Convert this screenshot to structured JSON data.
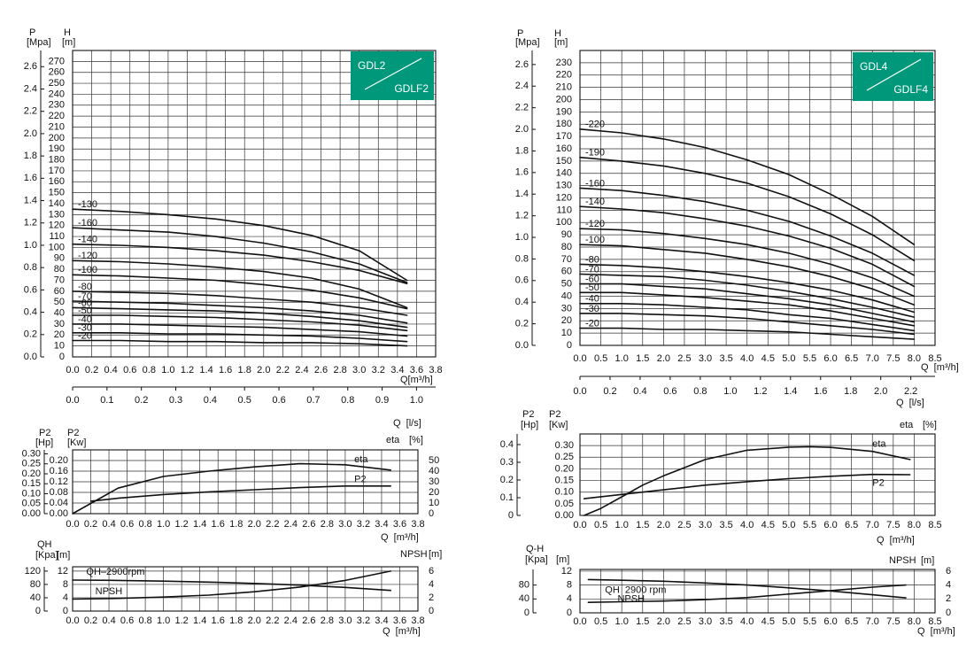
{
  "chart_data": [
    {
      "type": "line",
      "ylabel": "H",
      "yunit": "[m]",
      "y2label": "P",
      "y2unit": "[Mpa]",
      "xlabel": "Q[m³/h]",
      "x2label": "Q  [l/s]",
      "badge": [
        "GDL2",
        "GDLF2"
      ],
      "badge_color": "#00987a",
      "color": "#111111",
      "grid": true,
      "xlim": [
        0,
        3.8
      ],
      "xticks": [
        {
          "value": 0,
          "label": "0.0"
        },
        0.2,
        0.4,
        0.6,
        0.8,
        {
          "value": 1,
          "label": "1.0"
        },
        1.2,
        1.4,
        1.6,
        1.8,
        {
          "value": 2,
          "label": "2.0"
        },
        2.2,
        2.4,
        2.6,
        2.8,
        {
          "value": 3,
          "label": "3.0"
        },
        3.2,
        3.4,
        3.6,
        3.8
      ],
      "ylim": [
        0,
        280
      ],
      "yticks": [
        0,
        10,
        20,
        30,
        40,
        50,
        60,
        70,
        80,
        90,
        100,
        110,
        120,
        130,
        140,
        150,
        160,
        170,
        180,
        190,
        200,
        210,
        220,
        230,
        240,
        250,
        260,
        270
      ],
      "y2lim": [
        0,
        2.745
      ],
      "y2ticks": [
        {
          "value": 0,
          "label": "0.0"
        },
        0.2,
        0.4,
        0.6,
        0.8,
        {
          "value": 1,
          "label": "1.0"
        },
        1.2,
        1.4,
        1.6,
        1.8,
        {
          "value": 2,
          "label": "2.0"
        },
        2.2,
        2.4,
        2.6
      ],
      "x2lim": [
        0,
        1.0556
      ],
      "x2ticks": [
        {
          "value": 0,
          "label": "0.0"
        },
        0.1,
        0.2,
        0.3,
        0.4,
        0.5,
        0.6,
        0.7,
        0.8,
        0.9,
        {
          "value": 1,
          "label": "1.0"
        }
      ],
      "x": [
        0,
        0.5,
        1,
        1.5,
        2,
        2.5,
        3,
        3.5
      ],
      "series": [
        {
          "name": "-130",
          "values": [
            135,
            133,
            130,
            126,
            120,
            111,
            97,
            70
          ]
        },
        {
          "name": "-160",
          "values": [
            118,
            116,
            114,
            110,
            104,
            96,
            85,
            68
          ]
        },
        {
          "name": "-140",
          "values": [
            103,
            102,
            100,
            97,
            93,
            87,
            79,
            67
          ]
        },
        {
          "name": "-120",
          "values": [
            88,
            87,
            85,
            82,
            78,
            72,
            62,
            45
          ]
        },
        {
          "name": "-100",
          "values": [
            75,
            74,
            72,
            70,
            66,
            61,
            54,
            44
          ]
        },
        {
          "name": "-80",
          "values": [
            60,
            59,
            58,
            56,
            53,
            50,
            45,
            38
          ]
        },
        {
          "name": "-70",
          "values": [
            51,
            50,
            49,
            47,
            45,
            42,
            38,
            31
          ]
        },
        {
          "name": "-60",
          "values": [
            45,
            44,
            43,
            42,
            40,
            37,
            33,
            27
          ]
        },
        {
          "name": "-50",
          "values": [
            38,
            38,
            37,
            36,
            34,
            32,
            29,
            24
          ]
        },
        {
          "name": "-40",
          "values": [
            30,
            30,
            29,
            28,
            27,
            25,
            23,
            19
          ]
        },
        {
          "name": "-30",
          "values": [
            22,
            22,
            21,
            21,
            20,
            19,
            17,
            14
          ]
        },
        {
          "name": "-20",
          "values": [
            15,
            15,
            14,
            14,
            13,
            13,
            12,
            10
          ]
        }
      ]
    },
    {
      "type": "line",
      "ylabel": "P2",
      "yunit": "[Kw]",
      "y2label": "eta",
      "y2unit": "[%]",
      "y3label": "P2",
      "y3unit": "[Hp]",
      "xlabel": "Q  [m³/h]",
      "color": "#111111",
      "grid": true,
      "xlim": [
        0,
        3.8
      ],
      "xticks": [
        {
          "value": 0,
          "label": "0.0"
        },
        0.2,
        0.4,
        0.6,
        0.8,
        {
          "value": 1,
          "label": "1.0"
        },
        1.2,
        1.4,
        1.6,
        1.8,
        {
          "value": 2,
          "label": "2.0"
        },
        2.2,
        2.4,
        2.6,
        2.8,
        {
          "value": 3,
          "label": "3.0"
        },
        3.2,
        3.4,
        3.6,
        3.8
      ],
      "ylim": [
        0,
        0.24
      ],
      "yticks": [
        {
          "value": 0,
          "label": "0.00"
        },
        0.04,
        0.08,
        0.12,
        0.16,
        {
          "value": 0.2,
          "label": "0.20"
        }
      ],
      "y2lim": [
        0,
        60
      ],
      "y2ticks": [
        0,
        10,
        20,
        30,
        40,
        50
      ],
      "y3lim": [
        0,
        0.32
      ],
      "y3ticks": [
        {
          "value": 0,
          "label": "0.00"
        },
        0.05,
        {
          "value": 0.1,
          "label": "0.10"
        },
        0.15,
        {
          "value": 0.2,
          "label": "0.20"
        },
        0.25,
        {
          "value": 0.3,
          "label": "0.30"
        }
      ],
      "series": [
        {
          "name": "eta",
          "axis": "y2",
          "x": [
            0,
            0.5,
            1,
            1.5,
            2,
            2.5,
            3,
            3.5
          ],
          "values": [
            0,
            24,
            35,
            40,
            44,
            47,
            46,
            41
          ]
        },
        {
          "name": "P2",
          "x": [
            0.2,
            0.5,
            1,
            1.5,
            2,
            2.5,
            3,
            3.5
          ],
          "values": [
            0.047,
            0.058,
            0.072,
            0.082,
            0.09,
            0.098,
            0.104,
            0.104
          ]
        }
      ]
    },
    {
      "type": "line",
      "yunit": "[m]",
      "y2label": "NPSH",
      "y2unit": "[m]",
      "y3label": "QH",
      "y3unit": "[Kpa]",
      "xlabel": "Q  [m³/h]",
      "color": "#111111",
      "grid": true,
      "xlim": [
        0,
        3.8
      ],
      "xticks": [
        {
          "value": 0,
          "label": "0.0"
        },
        0.2,
        0.4,
        0.6,
        0.8,
        {
          "value": 1,
          "label": "1.0"
        },
        1.2,
        1.4,
        1.6,
        1.8,
        {
          "value": 2,
          "label": "2.0"
        },
        2.2,
        2.4,
        2.6,
        2.8,
        {
          "value": 3,
          "label": "3.0"
        },
        3.2,
        3.4,
        3.6,
        3.8
      ],
      "ylim": [
        0,
        13.3
      ],
      "yticks": [
        0,
        4,
        8,
        12
      ],
      "y2lim": [
        0,
        6.65
      ],
      "y2ticks": [
        0,
        2,
        4,
        6
      ],
      "y3lim": [
        0,
        133
      ],
      "y3ticks": [
        0,
        40,
        80,
        120
      ],
      "series": [
        {
          "name": "QH–2900rpm",
          "x": [
            0,
            0.5,
            1,
            1.5,
            2,
            2.5,
            3,
            3.5
          ],
          "values": [
            9.3,
            9.2,
            9.0,
            8.7,
            8.3,
            7.8,
            7.1,
            6.2
          ]
        },
        {
          "name": "NPSH",
          "axis": "y2",
          "x": [
            0,
            0.5,
            1,
            1.5,
            2,
            2.5,
            3,
            3.5
          ],
          "values": [
            1.8,
            1.9,
            2.1,
            2.4,
            2.9,
            3.6,
            4.6,
            6.0
          ]
        }
      ]
    },
    {
      "type": "line",
      "ylabel": "H",
      "yunit": "[m]",
      "y2label": "P",
      "y2unit": "[Mpa]",
      "xlabel": "Q  [m³/h]",
      "x2label": "Q  [l/s]",
      "badge": [
        "GDL4",
        "GDLF4"
      ],
      "badge_color": "#00987a",
      "color": "#111111",
      "grid": true,
      "xlim": [
        0,
        8.5
      ],
      "xticks": [
        {
          "value": 0,
          "label": "0.0"
        },
        0.5,
        {
          "value": 1,
          "label": "1.0"
        },
        1.5,
        {
          "value": 2,
          "label": "2.0"
        },
        2.5,
        {
          "value": 3,
          "label": "3.0"
        },
        3.5,
        {
          "value": 4,
          "label": "4.0"
        },
        4.5,
        {
          "value": 5,
          "label": "5.0"
        },
        5.5,
        {
          "value": 6,
          "label": "6.0"
        },
        6.5,
        {
          "value": 7,
          "label": "7.0"
        },
        7.5,
        {
          "value": 8,
          "label": "8.0"
        },
        8.5
      ],
      "ylim": [
        0,
        240
      ],
      "yticks": [
        0,
        10,
        20,
        30,
        40,
        50,
        60,
        70,
        80,
        90,
        100,
        110,
        120,
        130,
        140,
        150,
        160,
        170,
        180,
        190,
        200,
        210,
        220,
        230
      ],
      "y2lim": [
        0,
        2.73
      ],
      "y2ticks": [
        {
          "value": 0,
          "label": "0.0"
        },
        0.2,
        0.4,
        0.6,
        0.8,
        {
          "value": 1,
          "label": "1.0"
        },
        1.2,
        1.4,
        1.6,
        1.8,
        {
          "value": 2,
          "label": "2.0"
        },
        2.2,
        2.4,
        2.6
      ],
      "x2lim": [
        0,
        2.361
      ],
      "x2ticks": [
        {
          "value": 0,
          "label": "0.0"
        },
        0.2,
        0.4,
        0.6,
        0.8,
        {
          "value": 1,
          "label": "1.0"
        },
        1.2,
        1.4,
        1.6,
        1.8,
        {
          "value": 2,
          "label": "2.0"
        },
        2.2
      ],
      "x": [
        0,
        1,
        2,
        3,
        4,
        5,
        6,
        7,
        8
      ],
      "series": [
        {
          "name": "-220",
          "values": [
            176,
            173,
            168,
            161,
            151,
            139,
            123,
            105,
            82
          ]
        },
        {
          "name": "-190",
          "values": [
            153,
            150,
            146,
            140,
            132,
            121,
            107,
            90,
            69
          ]
        },
        {
          "name": "-160",
          "values": [
            128,
            126,
            122,
            117,
            110,
            101,
            89,
            75,
            57
          ]
        },
        {
          "name": "-140",
          "values": [
            113,
            111,
            108,
            103,
            97,
            89,
            79,
            66,
            48
          ]
        },
        {
          "name": "-120",
          "values": [
            95,
            94,
            91,
            87,
            82,
            75,
            66,
            55,
            40
          ]
        },
        {
          "name": "-100",
          "values": [
            82,
            81,
            78,
            75,
            70,
            64,
            56,
            46,
            33
          ]
        },
        {
          "name": "-80",
          "values": [
            66,
            65,
            63,
            60,
            56,
            51,
            45,
            37,
            27
          ]
        },
        {
          "name": "-70",
          "values": [
            58,
            57,
            56,
            53,
            49,
            44,
            38,
            31,
            23
          ]
        },
        {
          "name": "-60",
          "values": [
            50,
            50,
            48,
            46,
            42,
            38,
            33,
            26,
            19
          ]
        },
        {
          "name": "-50",
          "values": [
            43,
            43,
            41,
            39,
            36,
            33,
            28,
            22,
            16
          ]
        },
        {
          "name": "-40",
          "values": [
            34,
            34,
            33,
            31,
            29,
            25,
            22,
            17,
            12
          ]
        },
        {
          "name": "-30",
          "values": [
            26,
            26,
            25,
            24,
            22,
            19,
            16,
            13,
            9
          ]
        },
        {
          "name": "-20",
          "values": [
            14,
            14,
            13,
            13,
            12,
            11,
            9,
            7,
            5
          ]
        }
      ]
    },
    {
      "type": "line",
      "ylabel": "P2",
      "yunit": "[Kw]",
      "y2label": "eta",
      "y2unit": "[%]",
      "y3label": "P2",
      "y3unit": "[Hp]",
      "xlabel": "Q  [m³/h]",
      "color": "#111111",
      "grid": true,
      "xlim": [
        0,
        8.5
      ],
      "xticks": [
        {
          "value": 0,
          "label": "0.0"
        },
        0.5,
        {
          "value": 1,
          "label": "1.0"
        },
        1.5,
        {
          "value": 2,
          "label": "2.0"
        },
        2.5,
        {
          "value": 3,
          "label": "3.0"
        },
        3.5,
        {
          "value": 4,
          "label": "4.0"
        },
        4.5,
        {
          "value": 5,
          "label": "5.0"
        },
        5.5,
        {
          "value": 6,
          "label": "6.0"
        },
        6.5,
        {
          "value": 7,
          "label": "7.0"
        },
        7.5,
        {
          "value": 8,
          "label": "8.0"
        },
        8.5
      ],
      "ylim": [
        0,
        0.35
      ],
      "yticks": [
        {
          "value": 0,
          "label": "0.00"
        },
        0.05,
        {
          "value": 0.1,
          "label": "0.10"
        },
        0.15,
        {
          "value": 0.2,
          "label": "0.20"
        },
        0.25,
        {
          "value": 0.3,
          "label": "0.30"
        }
      ],
      "y3lim": [
        0,
        0.46
      ],
      "y3ticks": [
        0,
        0.1,
        0.2,
        0.3,
        0.4
      ],
      "series": [
        {
          "name": "eta",
          "x": [
            0.1,
            0.5,
            1,
            1.5,
            2,
            3,
            4,
            5,
            5.5,
            6,
            7,
            7.9
          ],
          "values": [
            0,
            0.03,
            0.08,
            0.13,
            0.17,
            0.24,
            0.28,
            0.293,
            0.295,
            0.292,
            0.275,
            0.24
          ]
        },
        {
          "name": "P2",
          "x": [
            0.1,
            1,
            2,
            3,
            4,
            5,
            6,
            7,
            7.9
          ],
          "values": [
            0.072,
            0.09,
            0.11,
            0.13,
            0.145,
            0.158,
            0.168,
            0.176,
            0.175
          ]
        }
      ]
    },
    {
      "type": "line",
      "yunit": "[m]",
      "y2label": "NPSH",
      "y2unit": "[m]",
      "y3label": "Q-H",
      "y3unit": "[Kpa]",
      "xlabel": "Q  [m³/h]",
      "color": "#111111",
      "grid": true,
      "xlim": [
        0,
        8.5
      ],
      "xticks": [
        {
          "value": 0,
          "label": "0.0"
        },
        0.5,
        {
          "value": 1,
          "label": "1.0"
        },
        1.5,
        {
          "value": 2,
          "label": "2.0"
        },
        2.5,
        {
          "value": 3,
          "label": "3.0"
        },
        3.5,
        {
          "value": 4,
          "label": "4.0"
        },
        4.5,
        {
          "value": 5,
          "label": "5.0"
        },
        5.5,
        {
          "value": 6,
          "label": "6.0"
        },
        6.5,
        {
          "value": 7,
          "label": "7.0"
        },
        7.5,
        {
          "value": 8,
          "label": "8.0"
        },
        8.5
      ],
      "ylim": [
        0,
        12.5
      ],
      "yticks": [
        0,
        4,
        8,
        12
      ],
      "y2lim": [
        0,
        6.25
      ],
      "y2ticks": [
        0,
        2,
        4,
        6
      ],
      "y3lim": [
        0,
        125
      ],
      "y3ticks": [
        0,
        40,
        80
      ],
      "series": [
        {
          "name": "QH  2900 rpm",
          "x": [
            0.2,
            1,
            2,
            3,
            4,
            5,
            6,
            7,
            7.8
          ],
          "values": [
            9.6,
            9.4,
            9.1,
            8.6,
            8.0,
            7.2,
            6.3,
            5.2,
            4.3
          ]
        },
        {
          "name": "NPSH",
          "axis": "y2",
          "x": [
            0.2,
            1,
            2,
            3,
            4,
            5,
            6,
            7,
            7.8
          ],
          "values": [
            1.5,
            1.6,
            1.7,
            1.9,
            2.2,
            2.7,
            3.2,
            3.7,
            4.0
          ]
        }
      ]
    }
  ]
}
